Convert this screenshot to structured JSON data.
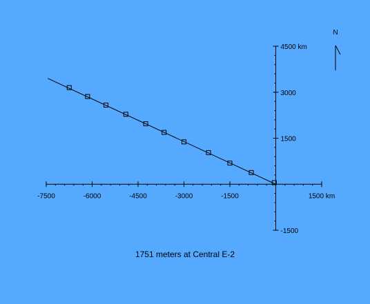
{
  "chart_data": {
    "type": "scatter",
    "title": "",
    "caption": "1751 meters at Central E-2",
    "x_ticks": [
      {
        "value": -7500,
        "label": "-7500"
      },
      {
        "value": -6000,
        "label": "-6000"
      },
      {
        "value": -4500,
        "label": "-4500"
      },
      {
        "value": -3000,
        "label": "-3000"
      },
      {
        "value": -1500,
        "label": "-1500"
      },
      {
        "value": 1500,
        "label": "1500 km"
      }
    ],
    "y_ticks": [
      {
        "value": 4500,
        "label": "4500 km"
      },
      {
        "value": 3000,
        "label": "3000"
      },
      {
        "value": 1500,
        "label": "1500"
      },
      {
        "value": -1500,
        "label": "-1500"
      }
    ],
    "xlim": [
      -7500,
      1500
    ],
    "ylim": [
      -1500,
      4500
    ],
    "line": [
      {
        "x": -7450,
        "y": 3450
      },
      {
        "x": 0,
        "y": 0
      }
    ],
    "series": [
      {
        "values": [
          {
            "x": -6750,
            "y": 3150
          },
          {
            "x": -6150,
            "y": 2860
          },
          {
            "x": -5550,
            "y": 2580
          },
          {
            "x": -4900,
            "y": 2280
          },
          {
            "x": -4250,
            "y": 1970
          },
          {
            "x": -3650,
            "y": 1690
          },
          {
            "x": -3000,
            "y": 1380
          },
          {
            "x": -2200,
            "y": 1030
          },
          {
            "x": -1500,
            "y": 690
          },
          {
            "x": -800,
            "y": 380
          },
          {
            "x": -50,
            "y": 50
          }
        ]
      }
    ],
    "north_label": "N",
    "grid": false,
    "legend": "none",
    "colors": {
      "background": "#55aaff",
      "ink": "#000000"
    }
  }
}
